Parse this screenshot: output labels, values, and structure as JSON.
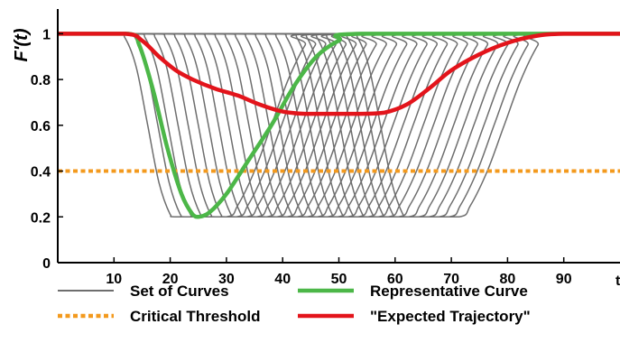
{
  "chart_data": {
    "type": "line",
    "title": "",
    "xlabel": "t",
    "ylabel": "F'(t)",
    "xlim": [
      0,
      100
    ],
    "ylim": [
      0,
      1.1
    ],
    "xticks": [
      10,
      20,
      30,
      40,
      50,
      60,
      70,
      80,
      90
    ],
    "yticks": [
      0,
      0.2,
      0.4,
      0.6,
      0.8,
      1
    ],
    "ytick_labels": [
      "0",
      "0.2",
      "0.4",
      "0.6",
      "0.8",
      "1"
    ],
    "grid": false,
    "legend_position": "bottom",
    "legend": [
      {
        "key": "set",
        "label": "Set of Curves",
        "color": "#6e6e6e",
        "style": "solid"
      },
      {
        "key": "rep",
        "label": "Representative Curve",
        "color": "#4cb748",
        "style": "solid"
      },
      {
        "key": "thr",
        "label": "Critical Threshold",
        "color": "#f39a1e",
        "style": "dotted"
      },
      {
        "key": "exp",
        "label": "\"Expected Trajectory\"",
        "color": "#e3141b",
        "style": "solid"
      }
    ],
    "set_of_curves": {
      "count": 24,
      "shift_step": 1.8,
      "base_points": [
        [
          0,
          1
        ],
        [
          10.5,
          1
        ],
        [
          12,
          0.98
        ],
        [
          14,
          0.85
        ],
        [
          16,
          0.6
        ],
        [
          18,
          0.35
        ],
        [
          20,
          0.21
        ],
        [
          21,
          0.2
        ],
        [
          30,
          0.2
        ],
        [
          32,
          0.25
        ],
        [
          35,
          0.4
        ],
        [
          38,
          0.6
        ],
        [
          41,
          0.8
        ],
        [
          44,
          0.95
        ],
        [
          46,
          1
        ],
        [
          100,
          1
        ]
      ]
    },
    "representative_curve": {
      "points": [
        [
          0,
          1
        ],
        [
          12.5,
          1
        ],
        [
          14.5,
          0.95
        ],
        [
          17,
          0.75
        ],
        [
          19.5,
          0.5
        ],
        [
          22,
          0.3
        ],
        [
          24,
          0.21
        ],
        [
          25,
          0.2
        ],
        [
          27,
          0.22
        ],
        [
          30,
          0.3
        ],
        [
          34,
          0.45
        ],
        [
          38,
          0.6
        ],
        [
          42,
          0.77
        ],
        [
          46,
          0.9
        ],
        [
          50,
          0.97
        ],
        [
          54,
          1
        ],
        [
          100,
          1
        ]
      ]
    },
    "critical_threshold": {
      "y": 0.4
    },
    "expected_trajectory": {
      "points": [
        [
          0,
          1
        ],
        [
          12,
          1
        ],
        [
          15,
          0.97
        ],
        [
          18,
          0.9
        ],
        [
          21,
          0.84
        ],
        [
          24,
          0.8
        ],
        [
          28,
          0.76
        ],
        [
          32,
          0.73
        ],
        [
          36,
          0.69
        ],
        [
          40,
          0.66
        ],
        [
          44,
          0.65
        ],
        [
          50,
          0.65
        ],
        [
          54,
          0.65
        ],
        [
          58,
          0.655
        ],
        [
          62,
          0.69
        ],
        [
          66,
          0.76
        ],
        [
          70,
          0.84
        ],
        [
          75,
          0.91
        ],
        [
          80,
          0.96
        ],
        [
          85,
          0.99
        ],
        [
          90,
          1
        ],
        [
          100,
          1
        ]
      ]
    }
  }
}
